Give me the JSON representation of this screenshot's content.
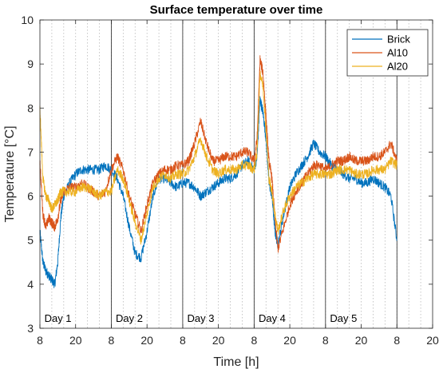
{
  "chart_data": {
    "type": "line",
    "title": "Surface temperature over time",
    "xlabel": "Time [h]",
    "ylabel": "Temperature [°C]",
    "xlim": [
      8,
      140
    ],
    "ylim": [
      3,
      10
    ],
    "xticks": [
      8,
      20,
      32,
      44,
      56,
      68,
      80,
      92,
      104,
      116,
      128,
      140
    ],
    "xtick_labels": [
      "8",
      "20",
      "8",
      "20",
      "8",
      "20",
      "8",
      "20",
      "8",
      "20",
      "8",
      "20"
    ],
    "yticks": [
      3,
      4,
      5,
      6,
      7,
      8,
      9,
      10
    ],
    "ytick_labels": [
      "3",
      "4",
      "5",
      "6",
      "7",
      "8",
      "9",
      "10"
    ],
    "grid": "dotted-vertical",
    "legend_position": "top-right",
    "day_boundaries": [
      32,
      56,
      80,
      104,
      128
    ],
    "day_labels": [
      {
        "text": "Day 1",
        "x": 9.5
      },
      {
        "text": "Day 2",
        "x": 33.5
      },
      {
        "text": "Day 3",
        "x": 57.5
      },
      {
        "text": "Day 4",
        "x": 81.5
      },
      {
        "text": "Day 5",
        "x": 105.5
      }
    ],
    "series": [
      {
        "name": "Brick",
        "color": "#0072BD",
        "x": [
          8,
          9,
          10,
          11,
          12,
          13,
          14,
          15,
          16,
          18,
          20,
          22,
          24,
          26,
          28,
          30,
          32,
          34,
          36,
          38,
          40,
          42,
          44,
          46,
          48,
          50,
          52,
          54,
          56,
          58,
          60,
          62,
          64,
          66,
          68,
          70,
          72,
          74,
          76,
          78,
          80,
          81,
          82,
          83,
          84,
          85,
          86,
          87,
          88,
          90,
          92,
          94,
          96,
          98,
          100,
          102,
          104,
          106,
          108,
          110,
          112,
          114,
          116,
          118,
          120,
          122,
          124,
          126,
          128
        ],
        "y": [
          5.2,
          4.5,
          4.3,
          4.2,
          4.1,
          4.0,
          4.5,
          5.5,
          6.0,
          6.3,
          6.5,
          6.6,
          6.6,
          6.6,
          6.6,
          6.7,
          6.6,
          6.4,
          6.0,
          5.3,
          4.7,
          4.6,
          5.2,
          6.0,
          6.4,
          6.4,
          6.3,
          6.2,
          6.3,
          6.3,
          6.2,
          6.0,
          6.1,
          6.2,
          6.3,
          6.4,
          6.4,
          6.5,
          6.7,
          6.8,
          6.6,
          6.9,
          8.2,
          7.9,
          7.3,
          6.3,
          6.0,
          5.2,
          4.9,
          5.6,
          6.2,
          6.5,
          6.7,
          6.9,
          7.2,
          7.0,
          6.9,
          6.7,
          6.6,
          6.5,
          6.4,
          6.4,
          6.3,
          6.3,
          6.4,
          6.3,
          6.2,
          6.0,
          5.0
        ]
      },
      {
        "name": "Al10",
        "color": "#D95319",
        "x": [
          8,
          9,
          10,
          11,
          12,
          13,
          14,
          15,
          16,
          18,
          20,
          22,
          24,
          26,
          28,
          30,
          32,
          34,
          36,
          38,
          40,
          42,
          44,
          46,
          48,
          50,
          52,
          54,
          56,
          58,
          60,
          62,
          64,
          66,
          68,
          70,
          72,
          74,
          76,
          78,
          80,
          81,
          82,
          83,
          84,
          85,
          86,
          87,
          88,
          90,
          92,
          94,
          96,
          98,
          100,
          102,
          104,
          106,
          108,
          110,
          112,
          114,
          116,
          118,
          120,
          122,
          124,
          126,
          128
        ],
        "y": [
          6.8,
          5.6,
          5.3,
          5.5,
          5.4,
          5.3,
          5.5,
          5.9,
          6.1,
          6.2,
          6.2,
          6.3,
          6.2,
          6.1,
          6.0,
          6.1,
          6.6,
          6.9,
          6.6,
          6.0,
          5.6,
          5.2,
          5.8,
          6.3,
          6.5,
          6.6,
          6.6,
          6.7,
          6.7,
          6.8,
          7.2,
          7.7,
          7.2,
          6.8,
          6.8,
          6.9,
          6.9,
          6.9,
          7.0,
          7.0,
          6.8,
          7.3,
          9.1,
          8.8,
          7.8,
          6.8,
          6.4,
          5.5,
          4.8,
          5.3,
          5.8,
          6.1,
          6.3,
          6.5,
          6.7,
          6.7,
          6.6,
          6.7,
          6.8,
          6.8,
          6.9,
          6.8,
          6.8,
          6.8,
          6.9,
          6.9,
          7.0,
          7.2,
          6.8
        ]
      },
      {
        "name": "Al20",
        "color": "#EDB120",
        "x": [
          8,
          9,
          10,
          11,
          12,
          13,
          14,
          15,
          16,
          18,
          20,
          22,
          24,
          26,
          28,
          30,
          32,
          34,
          36,
          38,
          40,
          42,
          44,
          46,
          48,
          50,
          52,
          54,
          56,
          58,
          60,
          62,
          64,
          66,
          68,
          70,
          72,
          74,
          76,
          78,
          80,
          81,
          82,
          83,
          84,
          85,
          86,
          87,
          88,
          90,
          92,
          94,
          96,
          98,
          100,
          102,
          104,
          106,
          108,
          110,
          112,
          114,
          116,
          118,
          120,
          122,
          124,
          126,
          128
        ],
        "y": [
          8.0,
          6.4,
          6.0,
          5.9,
          5.7,
          5.8,
          5.9,
          6.1,
          6.1,
          6.1,
          6.1,
          6.2,
          6.2,
          6.1,
          6.0,
          6.1,
          6.1,
          6.6,
          6.4,
          5.9,
          5.4,
          5.0,
          5.6,
          6.2,
          6.4,
          6.5,
          6.4,
          6.5,
          6.5,
          6.6,
          6.9,
          7.3,
          6.9,
          6.6,
          6.5,
          6.6,
          6.6,
          6.6,
          6.7,
          6.7,
          6.6,
          7.0,
          8.8,
          8.5,
          7.5,
          6.4,
          6.1,
          5.6,
          5.2,
          5.7,
          6.0,
          6.2,
          6.3,
          6.4,
          6.5,
          6.5,
          6.5,
          6.5,
          6.6,
          6.6,
          6.6,
          6.5,
          6.5,
          6.5,
          6.6,
          6.6,
          6.6,
          6.8,
          6.7
        ]
      }
    ]
  }
}
